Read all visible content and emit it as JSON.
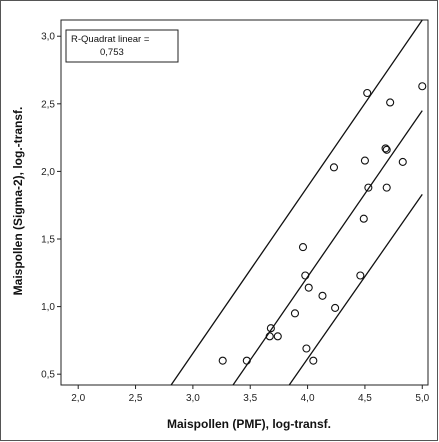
{
  "chart_data": {
    "type": "scatter",
    "xlabel": "Maispollen (PMF), log-transf.",
    "ylabel": "Maispollen (Sigma-2), log.-transf.",
    "xlim": [
      1.85,
      5.05
    ],
    "ylim": [
      0.42,
      3.12
    ],
    "x_ticks": [
      2.0,
      2.5,
      3.0,
      3.5,
      4.0,
      4.5,
      5.0
    ],
    "x_tick_labels": [
      "2,0",
      "2,5",
      "3,0",
      "3,5",
      "4,0",
      "4,5",
      "5,0"
    ],
    "y_ticks": [
      0.5,
      1.0,
      1.5,
      2.0,
      2.5,
      3.0
    ],
    "y_tick_labels": [
      "0,5",
      "1,0",
      "1,5",
      "2,0",
      "2,5",
      "3,0"
    ],
    "grid": false,
    "annotation_lines": [
      "R-Quadrat linear =",
      "0,753"
    ],
    "points": [
      {
        "x": 3.26,
        "y": 0.6
      },
      {
        "x": 3.47,
        "y": 0.6
      },
      {
        "x": 3.67,
        "y": 0.78
      },
      {
        "x": 3.68,
        "y": 0.84
      },
      {
        "x": 3.74,
        "y": 0.78
      },
      {
        "x": 3.89,
        "y": 0.95
      },
      {
        "x": 3.96,
        "y": 1.44
      },
      {
        "x": 3.98,
        "y": 1.23
      },
      {
        "x": 3.99,
        "y": 0.69
      },
      {
        "x": 4.01,
        "y": 1.14
      },
      {
        "x": 4.05,
        "y": 0.6
      },
      {
        "x": 4.13,
        "y": 1.08
      },
      {
        "x": 4.23,
        "y": 2.03
      },
      {
        "x": 4.24,
        "y": 0.99
      },
      {
        "x": 4.46,
        "y": 1.23
      },
      {
        "x": 4.49,
        "y": 1.65
      },
      {
        "x": 4.5,
        "y": 2.08
      },
      {
        "x": 4.52,
        "y": 2.58
      },
      {
        "x": 4.53,
        "y": 1.88
      },
      {
        "x": 4.68,
        "y": 2.17
      },
      {
        "x": 4.69,
        "y": 2.16
      },
      {
        "x": 4.69,
        "y": 1.88
      },
      {
        "x": 4.72,
        "y": 2.51
      },
      {
        "x": 4.83,
        "y": 2.07
      },
      {
        "x": 5.0,
        "y": 2.63
      }
    ],
    "lines": [
      {
        "name": "upper",
        "x1": 2.81,
        "y1": 0.42,
        "x2": 5.0,
        "y2": 3.12
      },
      {
        "name": "fit",
        "x1": 3.35,
        "y1": 0.42,
        "x2": 5.0,
        "y2": 2.45
      },
      {
        "name": "lower",
        "x1": 3.84,
        "y1": 0.42,
        "x2": 5.0,
        "y2": 1.83
      }
    ]
  }
}
